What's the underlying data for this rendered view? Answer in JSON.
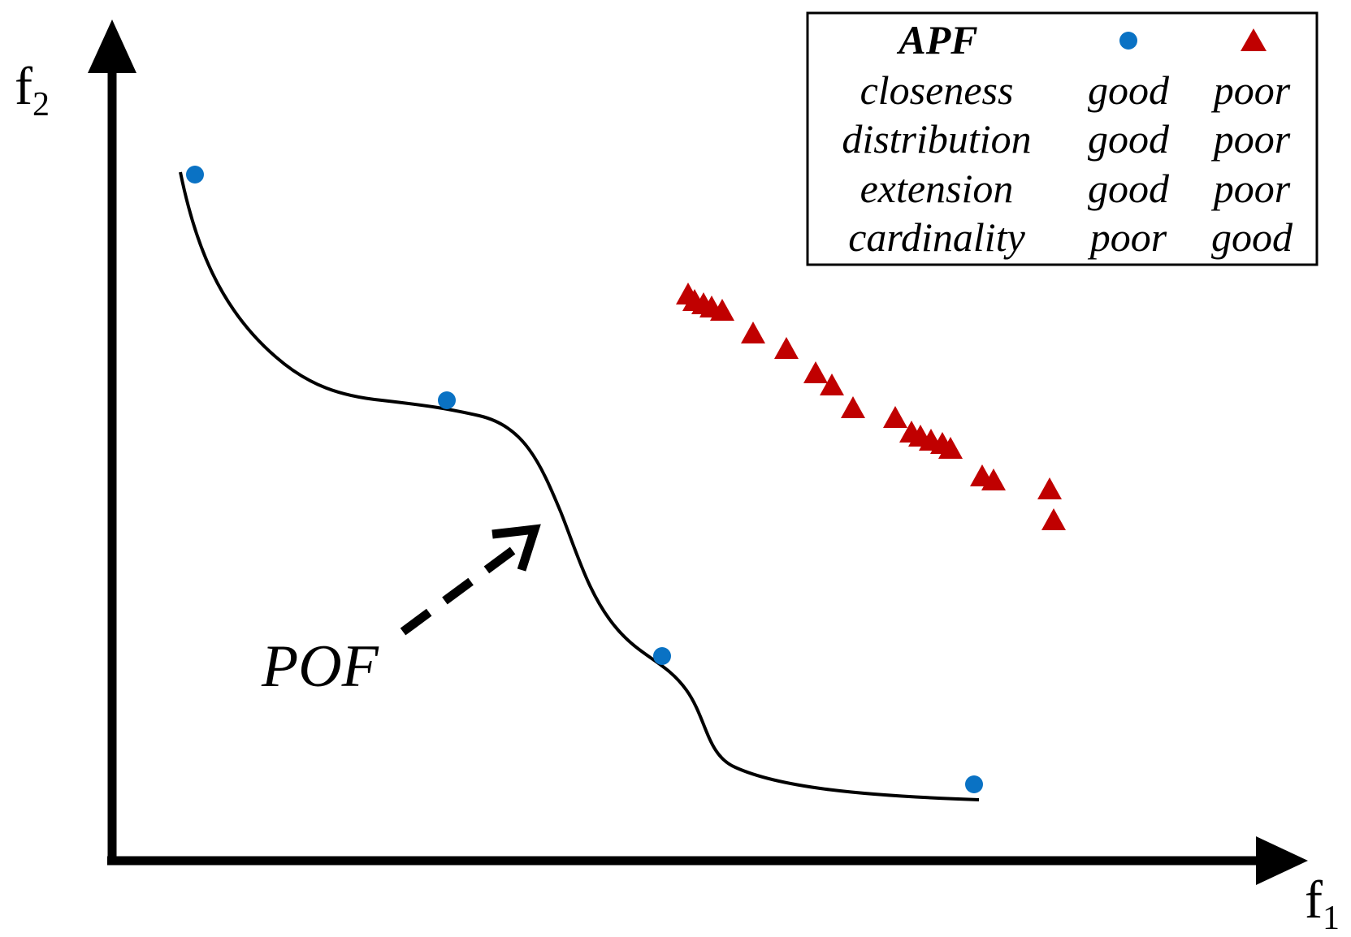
{
  "axes": {
    "x_label": "f",
    "x_subscript": "1",
    "y_label": "f",
    "y_subscript": "2"
  },
  "curve": {
    "label": "POF"
  },
  "legend": {
    "title": "APF",
    "rows": [
      {
        "criterion": "closeness",
        "circle": "good",
        "triangle": "poor"
      },
      {
        "criterion": "distribution",
        "circle": "good",
        "triangle": "poor"
      },
      {
        "criterion": "extension",
        "circle": "good",
        "triangle": "poor"
      },
      {
        "criterion": "cardinality",
        "circle": "poor",
        "triangle": "good"
      }
    ]
  },
  "colors": {
    "circle": "#0a72c4",
    "triangle": "#c00000",
    "line": "#000000"
  },
  "marker_shapes": {
    "set_a": "circle",
    "set_b": "triangle"
  }
}
